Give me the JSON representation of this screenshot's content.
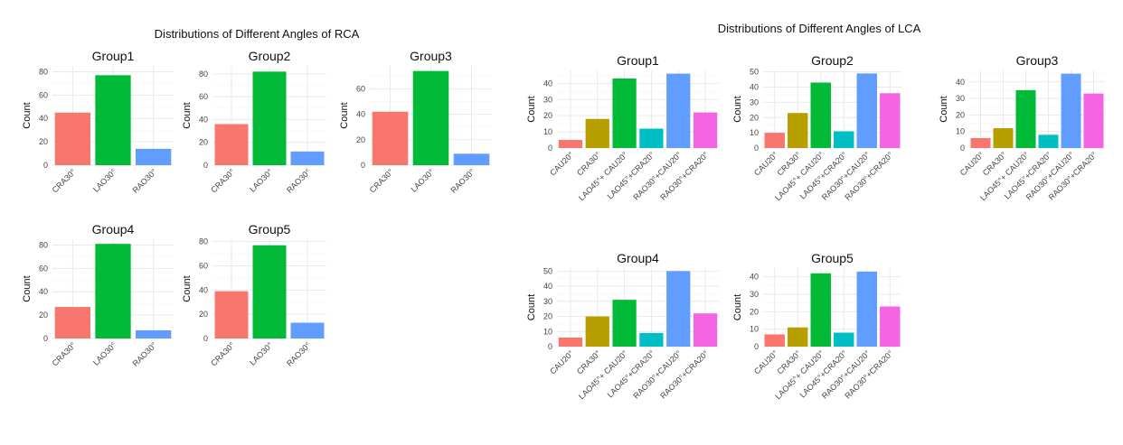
{
  "colors": {
    "CRA30": "#F8766D",
    "LAO30": "#00BA38",
    "RAO30": "#619CFF",
    "CAU20": "#F8766D",
    "CRA30_lca": "#B79F00",
    "LAO45_CAU20": "#00BA38",
    "LAO45_CRA20": "#00BFC4",
    "RAO30_CAU20": "#619CFF",
    "RAO30_CRA20": "#F564E3"
  },
  "chart_data": [
    {
      "type": "bar",
      "figure": "RCA",
      "figure_title": "Distributions of Different Angles of RCA",
      "title": "Group1",
      "ylabel": "Count",
      "categories": [
        "CRA30°",
        "LAO30°",
        "RAO30°"
      ],
      "values": [
        45,
        77,
        14
      ],
      "ylim": [
        0,
        85
      ],
      "yticks": [
        0,
        20,
        40,
        60,
        80
      ]
    },
    {
      "type": "bar",
      "figure": "RCA",
      "title": "Group2",
      "ylabel": "Count",
      "categories": [
        "CRA30°",
        "LAO30°",
        "RAO30°"
      ],
      "values": [
        36,
        82,
        12
      ],
      "ylim": [
        0,
        87
      ],
      "yticks": [
        0,
        20,
        40,
        60,
        80
      ]
    },
    {
      "type": "bar",
      "figure": "RCA",
      "title": "Group3",
      "ylabel": "Count",
      "categories": [
        "CRA30°",
        "LAO30°",
        "RAO30°"
      ],
      "values": [
        42,
        74,
        9
      ],
      "ylim": [
        0,
        78
      ],
      "yticks": [
        0,
        20,
        40,
        60
      ]
    },
    {
      "type": "bar",
      "figure": "RCA",
      "title": "Group4",
      "ylabel": "Count",
      "categories": [
        "CRA30°",
        "LAO30°",
        "RAO30°"
      ],
      "values": [
        27,
        81,
        7
      ],
      "ylim": [
        0,
        85
      ],
      "yticks": [
        0,
        20,
        40,
        60,
        80
      ]
    },
    {
      "type": "bar",
      "figure": "RCA",
      "title": "Group5",
      "ylabel": "Count",
      "categories": [
        "CRA30°",
        "LAO30°",
        "RAO30°"
      ],
      "values": [
        39,
        77,
        13
      ],
      "ylim": [
        0,
        82
      ],
      "yticks": [
        0,
        20,
        40,
        60,
        80
      ]
    },
    {
      "type": "bar",
      "figure": "LCA",
      "figure_title": "Distributions of Different Angles of LCA",
      "title": "Group1",
      "ylabel": "Count",
      "categories": [
        "CAU20°",
        "CRA30°",
        "LAO45°+ CAU20°",
        "LAO45°+CRA20°",
        "RAO30°+CAU20°",
        "RAO30°+CRA20°"
      ],
      "values": [
        5,
        18,
        43,
        12,
        46,
        22
      ],
      "ylim": [
        0,
        48
      ],
      "yticks": [
        0,
        10,
        20,
        30,
        40
      ]
    },
    {
      "type": "bar",
      "figure": "LCA",
      "title": "Group2",
      "ylabel": "Count",
      "categories": [
        "CAU20°",
        "CRA30°",
        "LAO45°+ CAU20°",
        "LAO45°+CRA20°",
        "RAO30°+CAU20°",
        "RAO30°+CRA20°"
      ],
      "values": [
        10,
        23,
        43,
        11,
        49,
        36
      ],
      "ylim": [
        0,
        51
      ],
      "yticks": [
        0,
        10,
        20,
        30,
        40,
        50
      ]
    },
    {
      "type": "bar",
      "figure": "LCA",
      "title": "Group3",
      "ylabel": "Count",
      "categories": [
        "CAU20°",
        "CRA30°",
        "LAO45°+ CAU20°",
        "LAO45°+CRA20°",
        "RAO30°+CAU20°",
        "RAO30°+CRA20°"
      ],
      "values": [
        6,
        12,
        35,
        8,
        45,
        33
      ],
      "ylim": [
        0,
        47
      ],
      "yticks": [
        0,
        10,
        20,
        30,
        40
      ]
    },
    {
      "type": "bar",
      "figure": "LCA",
      "title": "Group4",
      "ylabel": "Count",
      "categories": [
        "CAU20°",
        "CRA30°",
        "LAO45°+ CAU20°",
        "LAO45°+CRA20°",
        "RAO30°+CAU20°",
        "RAO30°+CRA20°"
      ],
      "values": [
        6,
        20,
        31,
        9,
        50,
        22
      ],
      "ylim": [
        0,
        52
      ],
      "yticks": [
        0,
        10,
        20,
        30,
        40,
        50
      ]
    },
    {
      "type": "bar",
      "figure": "LCA",
      "title": "Group5",
      "ylabel": "Count",
      "categories": [
        "CAU20°",
        "CRA30°",
        "LAO45°+ CAU20°",
        "LAO45°+CRA20°",
        "RAO30°+CAU20°",
        "RAO30°+CRA20°"
      ],
      "values": [
        7,
        11,
        42,
        8,
        43,
        23
      ],
      "ylim": [
        0,
        45
      ],
      "yticks": [
        0,
        10,
        20,
        30,
        40
      ]
    }
  ]
}
